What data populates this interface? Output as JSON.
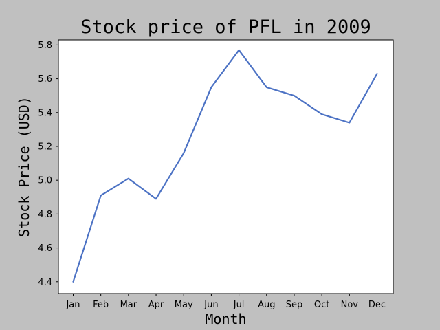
{
  "chart_data": {
    "type": "line",
    "title": "Stock price of PFL in 2009",
    "xlabel": "Month",
    "ylabel": "Stock Price (USD)",
    "categories": [
      "Jan",
      "Feb",
      "Mar",
      "Apr",
      "May",
      "Jun",
      "Jul",
      "Aug",
      "Sep",
      "Oct",
      "Nov",
      "Dec"
    ],
    "series": [
      {
        "values": [
          4.4,
          4.91,
          5.01,
          4.89,
          5.16,
          5.55,
          5.77,
          5.55,
          5.5,
          5.39,
          5.34,
          5.63
        ],
        "color": "#4c72c4"
      }
    ],
    "ylim": [
      4.33,
      5.83
    ],
    "yticks": [
      "4.4",
      "4.6",
      "4.8",
      "5.0",
      "5.2",
      "5.4",
      "5.6",
      "5.8"
    ],
    "grid": false,
    "legend": "none"
  },
  "colors": {
    "background": "#c0c0c0",
    "plot_area": "#ffffff",
    "line": "#4c72c4"
  }
}
